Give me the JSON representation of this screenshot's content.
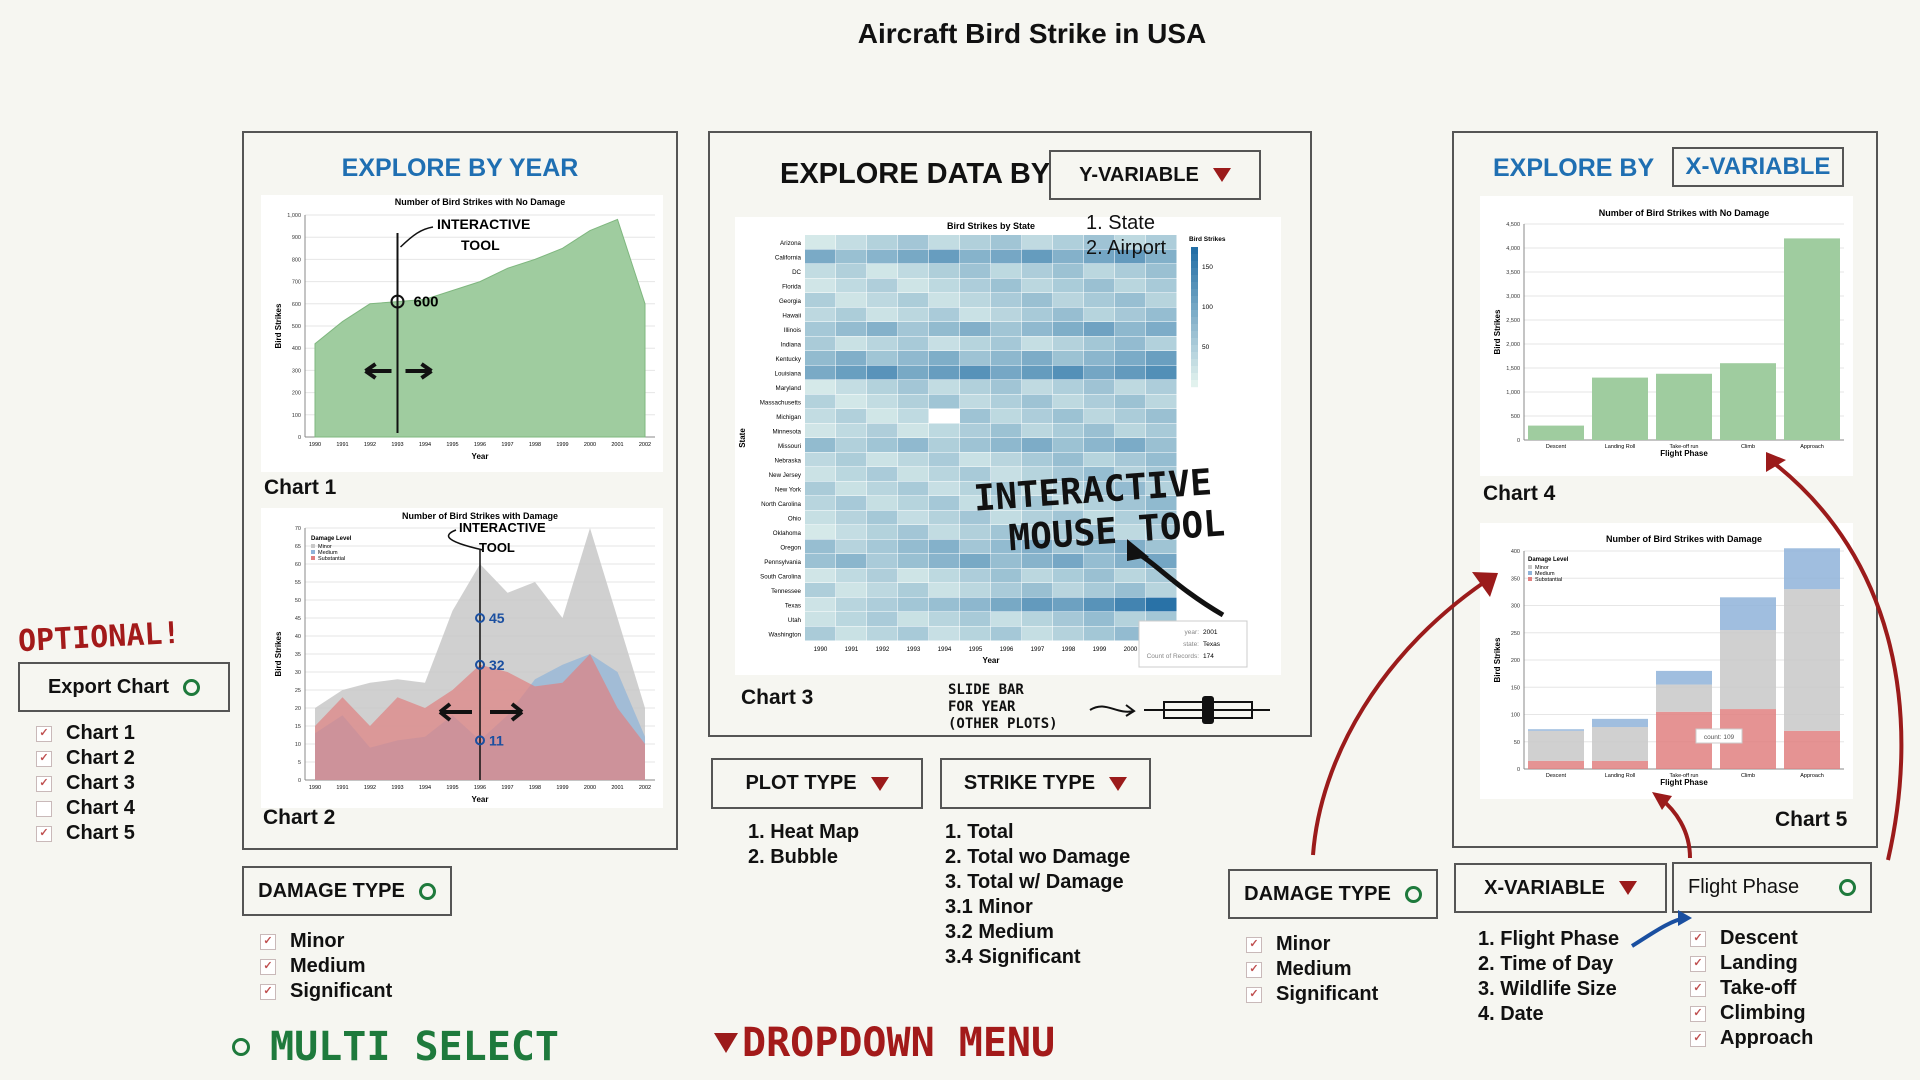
{
  "title": "Aircraft Bird Strike in USA",
  "left_panel": {
    "title": "EXPLORE BY YEAR",
    "chart1_caption": "Chart 1",
    "chart2_caption": "Chart 2",
    "damage_type_button": "DAMAGE TYPE",
    "damage_options": [
      "Minor",
      "Medium",
      "Significant"
    ]
  },
  "center_panel": {
    "title": "EXPLORE DATA BY",
    "y_variable_button": "Y-VARIABLE",
    "y_options": [
      "1. State",
      "2. Airport"
    ],
    "chart3_caption": "Chart 3",
    "slide_note": [
      "SLIDE BAR",
      "FOR YEAR",
      "(OTHER PLOTS)"
    ],
    "mouse_note": [
      "INTERACTIVE",
      "MOUSE TOOL"
    ],
    "plot_type_button": "PLOT TYPE",
    "plot_type_options": [
      "1. Heat Map",
      "2. Bubble"
    ],
    "strike_type_button": "STRIKE TYPE",
    "strike_type_options": [
      "1. Total",
      "2. Total wo Damage",
      "3. Total w/ Damage",
      "3.1 Minor",
      "3.2 Medium",
      "3.4 Significant"
    ]
  },
  "right_panel": {
    "title": "EXPLORE BY",
    "x_variable_label": "X-VARIABLE",
    "chart4_caption": "Chart 4",
    "chart5_caption": "Chart 5",
    "damage_type_button": "DAMAGE TYPE",
    "damage_options": [
      "Minor",
      "Medium",
      "Significant"
    ],
    "x_variable_button": "X-VARIABLE",
    "x_options": [
      "1. Flight Phase",
      "2. Time of Day",
      "3. Wildlife Size",
      "4. Date"
    ],
    "flight_phase_button": "Flight Phase",
    "flight_phase_options": [
      "Descent",
      "Landing",
      "Take-off",
      "Climbing",
      "Approach"
    ]
  },
  "export": {
    "optional_note": "OPTIONAL!",
    "button": "Export Chart",
    "items": [
      "Chart 1",
      "Chart 2",
      "Chart 3",
      "Chart 4",
      "Chart 5"
    ],
    "checked": [
      true,
      true,
      true,
      false,
      true
    ]
  },
  "legend_notes": {
    "multi_select": "MULTI SELECT",
    "dropdown": "DROPDOWN MENU"
  },
  "colors": {
    "accent_blue": "#1f6fb2",
    "annotation_red": "#9b1b1b",
    "annotation_green": "#1e7a3c",
    "area_green": "#9fcc9f",
    "minor": "#c8c8c8",
    "medium": "#8fb3d9",
    "substantial": "#e08080"
  },
  "chart_data": [
    {
      "id": "chart1",
      "type": "area",
      "title": "Number of Bird Strikes with No Damage",
      "xlabel": "Year",
      "ylabel": "Bird Strikes",
      "x": [
        "1990",
        "1991",
        "1992",
        "1993",
        "1994",
        "1995",
        "1996",
        "1997",
        "1998",
        "1999",
        "2000",
        "2001",
        "2002"
      ],
      "values": [
        420,
        520,
        600,
        610,
        620,
        660,
        700,
        760,
        800,
        850,
        930,
        980,
        600
      ],
      "ylim": [
        0,
        1000
      ],
      "yticks": [
        "0",
        "100",
        "200",
        "300",
        "400",
        "500",
        "600",
        "700",
        "800",
        "900",
        "1,000"
      ],
      "annotations": [
        "INTERACTIVE TOOL",
        "600"
      ]
    },
    {
      "id": "chart2",
      "type": "area",
      "title": "Number of Bird Strikes with Damage",
      "xlabel": "Year",
      "ylabel": "Bird Strikes",
      "legend_title": "Damage Level",
      "x": [
        "1990",
        "1991",
        "1992",
        "1993",
        "1994",
        "1995",
        "1996",
        "1997",
        "1998",
        "1999",
        "2000",
        "2001",
        "2002"
      ],
      "series": [
        {
          "name": "Minor",
          "values": [
            20,
            25,
            27,
            28,
            27,
            47,
            60,
            52,
            55,
            45,
            70,
            45,
            20
          ]
        },
        {
          "name": "Medium",
          "values": [
            13,
            18,
            9,
            11,
            12,
            18,
            11,
            18,
            28,
            32,
            35,
            30,
            12
          ]
        },
        {
          "name": "Substantial",
          "values": [
            15,
            23,
            15,
            23,
            20,
            25,
            32,
            30,
            26,
            27,
            35,
            20,
            10
          ]
        }
      ],
      "ylim": [
        0,
        70
      ],
      "yticks": [
        "0",
        "5",
        "10",
        "15",
        "20",
        "25",
        "30",
        "35",
        "40",
        "45",
        "50",
        "55",
        "60",
        "65",
        "70"
      ],
      "annotations": [
        "INTERACTIVE TOOL",
        "45",
        "32",
        "11"
      ]
    },
    {
      "id": "chart3",
      "type": "heatmap",
      "title": "Bird Strikes by State",
      "xlabel": "Year",
      "ylabel": "State",
      "legend_title": "Bird Strikes",
      "legend_ticks": [
        "150",
        "100",
        "50"
      ],
      "x": [
        "1990",
        "1991",
        "1992",
        "1993",
        "1994",
        "1995",
        "1996",
        "1997",
        "1998",
        "1999",
        "2000",
        "2001"
      ],
      "y": [
        "Arizona",
        "California",
        "DC",
        "Florida",
        "Georgia",
        "Hawaii",
        "Illinois",
        "Indiana",
        "Kentucky",
        "Louisiana",
        "Maryland",
        "Massachusetts",
        "Michigan",
        "Minnesota",
        "Missouri",
        "Nebraska",
        "New Jersey",
        "New York",
        "North Carolina",
        "Ohio",
        "Oklahoma",
        "Oregon",
        "Pennsylvania",
        "South Carolina",
        "Tennessee",
        "Texas",
        "Utah",
        "Washington"
      ],
      "highlight_row": [
        20,
        40,
        50,
        60,
        70,
        80,
        100,
        120,
        110,
        130,
        150,
        174
      ],
      "tooltip": {
        "year": "2001",
        "state": "Texas",
        "Count of Records": "174"
      }
    },
    {
      "id": "chart4",
      "type": "bar",
      "title": "Number of Bird Strikes with No Damage",
      "xlabel": "Flight Phase",
      "ylabel": "Bird Strikes",
      "categories": [
        "Descent",
        "Landing Roll",
        "Take-off run",
        "Climb",
        "Approach"
      ],
      "values": [
        300,
        1300,
        1380,
        1600,
        4200
      ],
      "ylim": [
        0,
        4500
      ],
      "yticks": [
        "0",
        "500",
        "1,000",
        "1,500",
        "2,000",
        "2,500",
        "3,000",
        "3,500",
        "4,000",
        "4,500"
      ]
    },
    {
      "id": "chart5",
      "type": "bar",
      "title": "Number of Bird Strikes with Damage",
      "xlabel": "Flight Phase",
      "ylabel": "Bird Strikes",
      "legend_title": "Damage Level",
      "categories": [
        "Descent",
        "Landing Roll",
        "Take-off run",
        "Climb",
        "Approach"
      ],
      "series": [
        {
          "name": "Substantial",
          "values": [
            15,
            15,
            105,
            110,
            70
          ]
        },
        {
          "name": "Minor",
          "values": [
            55,
            62,
            50,
            145,
            260
          ]
        },
        {
          "name": "Medium",
          "values": [
            3,
            15,
            25,
            60,
            75
          ]
        }
      ],
      "ylim": [
        0,
        400
      ],
      "yticks": [
        "0",
        "50",
        "100",
        "150",
        "200",
        "250",
        "300",
        "350",
        "400"
      ],
      "tooltip": "count: 109"
    }
  ]
}
